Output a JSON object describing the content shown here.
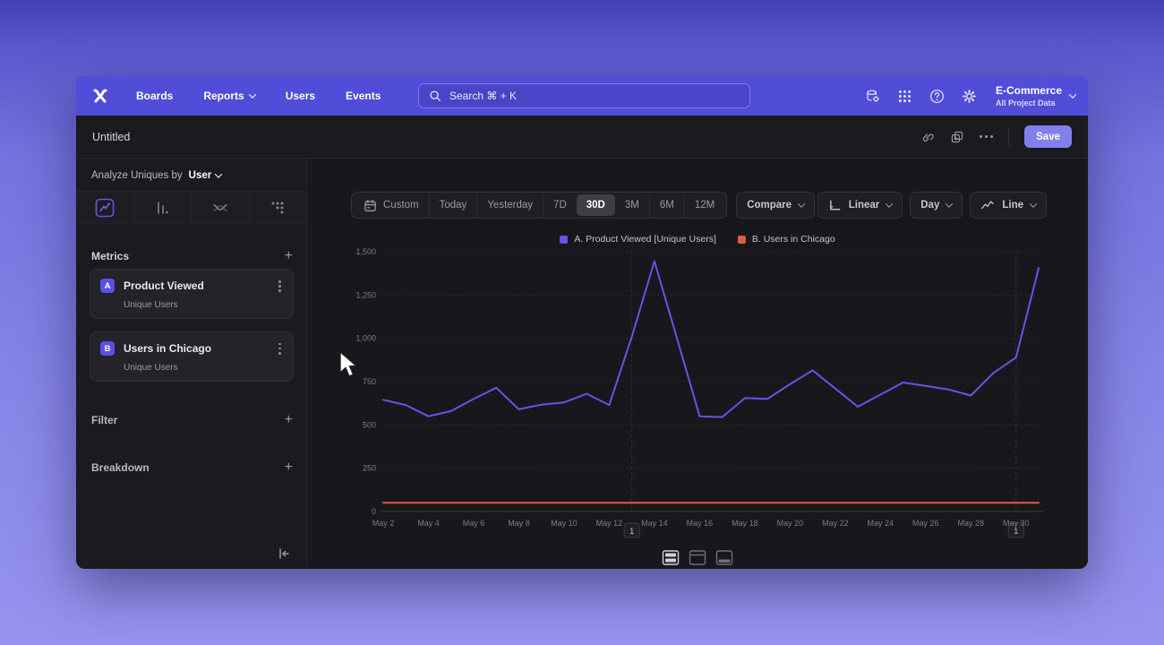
{
  "nav": {
    "items": [
      {
        "label": "Boards",
        "chevron": false
      },
      {
        "label": "Reports",
        "chevron": true
      },
      {
        "label": "Users",
        "chevron": false
      },
      {
        "label": "Events",
        "chevron": false
      }
    ],
    "search_placeholder": "Search  ⌘ + K",
    "project_name": "E-Commerce",
    "project_subtitle": "All Project Data"
  },
  "toolbar": {
    "title": "Untitled",
    "save_label": "Save"
  },
  "sidebar": {
    "analyze_prefix": "Analyze Uniques by",
    "analyze_value": "User",
    "metrics_label": "Metrics",
    "filter_label": "Filter",
    "breakdown_label": "Breakdown",
    "metrics": [
      {
        "badge": "A",
        "name": "Product Viewed",
        "subtitle": "Unique Users"
      },
      {
        "badge": "B",
        "name": "Users in Chicago",
        "subtitle": "Unique Users"
      }
    ]
  },
  "chart_controls": {
    "ranges": [
      "Custom",
      "Today",
      "Yesterday",
      "7D",
      "30D",
      "3M",
      "6M",
      "12M"
    ],
    "selected_range": "30D",
    "compare": "Compare",
    "scale": "Linear",
    "granularity": "Day",
    "chart_type": "Line"
  },
  "chart_data": {
    "type": "line",
    "x": [
      "May 2",
      "May 3",
      "May 4",
      "May 5",
      "May 6",
      "May 7",
      "May 8",
      "May 9",
      "May 10",
      "May 11",
      "May 12",
      "May 13",
      "May 14",
      "May 15",
      "May 16",
      "May 17",
      "May 18",
      "May 19",
      "May 20",
      "May 21",
      "May 22",
      "May 23",
      "May 24",
      "May 25",
      "May 26",
      "May 27",
      "May 28",
      "May 29",
      "May 30",
      "May 31"
    ],
    "series": [
      {
        "name": "A. Product Viewed [Unique Users]",
        "color": "#6355e8",
        "values": [
          645,
          615,
          550,
          580,
          650,
          715,
          590,
          617,
          630,
          680,
          615,
          1010,
          1445,
          1000,
          550,
          545,
          655,
          650,
          735,
          815,
          710,
          605,
          675,
          745,
          725,
          705,
          670,
          800,
          890,
          1405
        ]
      },
      {
        "name": "B. Users in Chicago",
        "color": "#dd5a4c",
        "values": [
          50,
          50,
          50,
          50,
          50,
          50,
          50,
          50,
          50,
          50,
          50,
          50,
          50,
          50,
          50,
          50,
          50,
          50,
          50,
          50,
          50,
          50,
          50,
          50,
          50,
          50,
          50,
          50,
          50,
          50
        ]
      }
    ],
    "ylim": [
      0,
      1500
    ],
    "yticks": [
      0,
      250,
      500,
      750,
      1000,
      1250,
      1500
    ],
    "xtick_every": 2,
    "grid": "horizontal-dotted",
    "legend_position": "top-center",
    "annotations": [
      {
        "label": "1",
        "x": "May 13"
      },
      {
        "label": "1",
        "x": "May 30"
      }
    ]
  },
  "footer_layouts": [
    "rows-split",
    "header-top",
    "footer-bottom"
  ],
  "footer_selected": "rows-split"
}
